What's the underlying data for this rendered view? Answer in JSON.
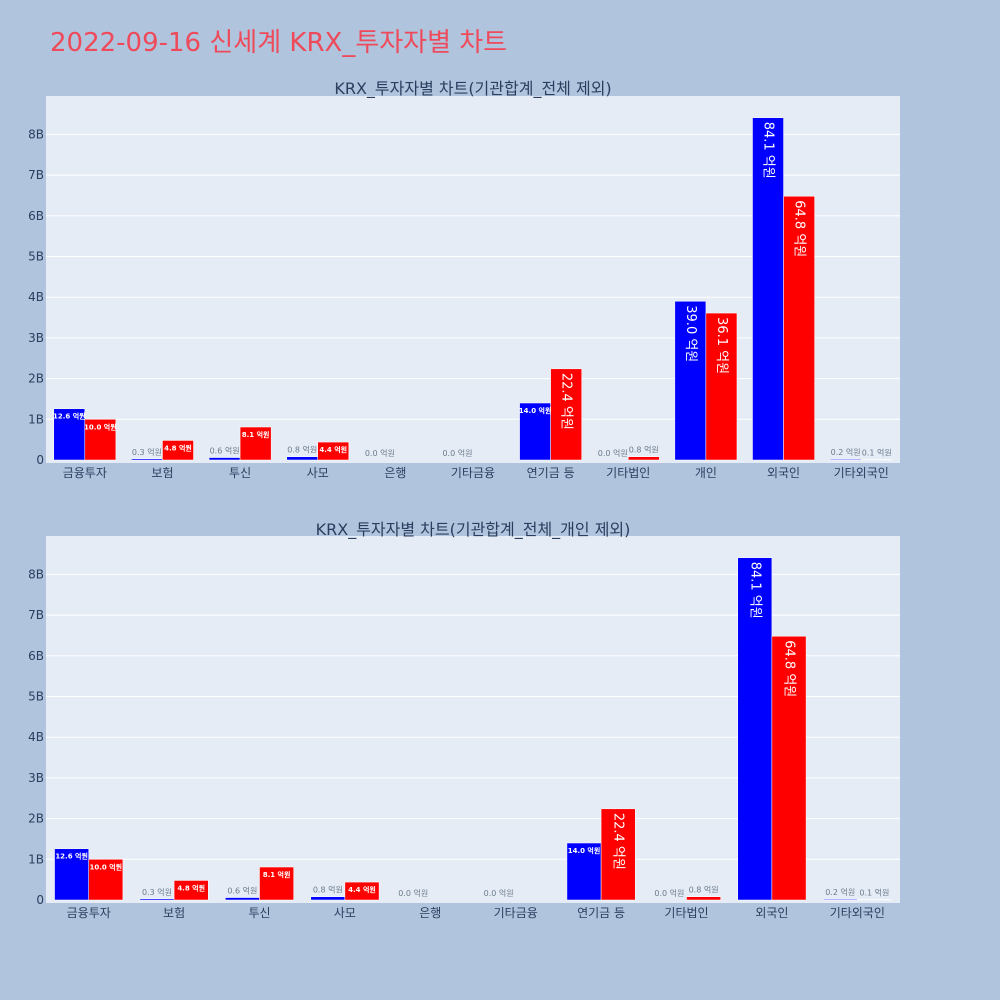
{
  "page": {
    "title": "2022-09-16 신세계 KRX_투자자별 차트"
  },
  "colors": {
    "sell": "#0000ff",
    "buy": "#ff0000",
    "plot_bg": "#e5ecf6",
    "page_bg": "#b0c4de"
  },
  "chart_data": [
    {
      "type": "bar",
      "title": "KRX_투자자별 차트(기관합계_전체 제외)",
      "categories": [
        "금융투자",
        "보험",
        "투신",
        "사모",
        "은행",
        "기타금융",
        "연기금 등",
        "기타법인",
        "개인",
        "외국인",
        "기타외국인"
      ],
      "y_tick_labels": [
        "0",
        "1B",
        "2B",
        "3B",
        "4B",
        "5B",
        "6B",
        "7B",
        "8B"
      ],
      "ylim": [
        0,
        8.9
      ],
      "series": [
        {
          "color": "#0000ff",
          "values": [
            1.26,
            0.03,
            0.06,
            0.08,
            0.0,
            0.0,
            1.4,
            0.0,
            3.9,
            8.41,
            0.02
          ],
          "labels": [
            "12.6 억원",
            "0.3 억원",
            "0.6 억원",
            "0.8 억원",
            "0.0 억원",
            "0.0 억원",
            "14.0 억원",
            "0.0 억원",
            "39.0 억원",
            "84.1 억원",
            "0.2 억원"
          ]
        },
        {
          "color": "#ff0000",
          "values": [
            1.0,
            0.48,
            0.81,
            0.44,
            0.0,
            0.0,
            2.24,
            0.08,
            3.61,
            6.48,
            0.01
          ],
          "labels": [
            "10.0 억원",
            "4.8 억원",
            "8.1 억원",
            "4.4 억원",
            "",
            "",
            "22.4 억원",
            "0.8 억원",
            "36.1 억원",
            "64.8 억원",
            "0.1 억원"
          ]
        }
      ],
      "grid": true
    },
    {
      "type": "bar",
      "title": "KRX_투자자별 차트(기관합계_전체_개인 제외)",
      "categories": [
        "금융투자",
        "보험",
        "투신",
        "사모",
        "은행",
        "기타금융",
        "연기금 등",
        "기타법인",
        "외국인",
        "기타외국인"
      ],
      "y_tick_labels": [
        "0",
        "1B",
        "2B",
        "3B",
        "4B",
        "5B",
        "6B",
        "7B",
        "8B"
      ],
      "ylim": [
        0,
        8.9
      ],
      "series": [
        {
          "color": "#0000ff",
          "values": [
            1.26,
            0.03,
            0.06,
            0.08,
            0.0,
            0.0,
            1.4,
            0.0,
            8.41,
            0.02
          ],
          "labels": [
            "12.6 억원",
            "0.3 억원",
            "0.6 억원",
            "0.8 억원",
            "0.0 억원",
            "0.0 억원",
            "14.0 억원",
            "0.0 억원",
            "84.1 억원",
            "0.2 억원"
          ]
        },
        {
          "color": "#ff0000",
          "values": [
            1.0,
            0.48,
            0.81,
            0.44,
            0.0,
            0.0,
            2.24,
            0.08,
            6.48,
            0.01
          ],
          "labels": [
            "10.0 억원",
            "4.8 억원",
            "8.1 억원",
            "4.4 억원",
            "",
            "",
            "22.4 억원",
            "0.8 억원",
            "64.8 억원",
            "0.1 억원"
          ]
        }
      ],
      "grid": true
    }
  ]
}
